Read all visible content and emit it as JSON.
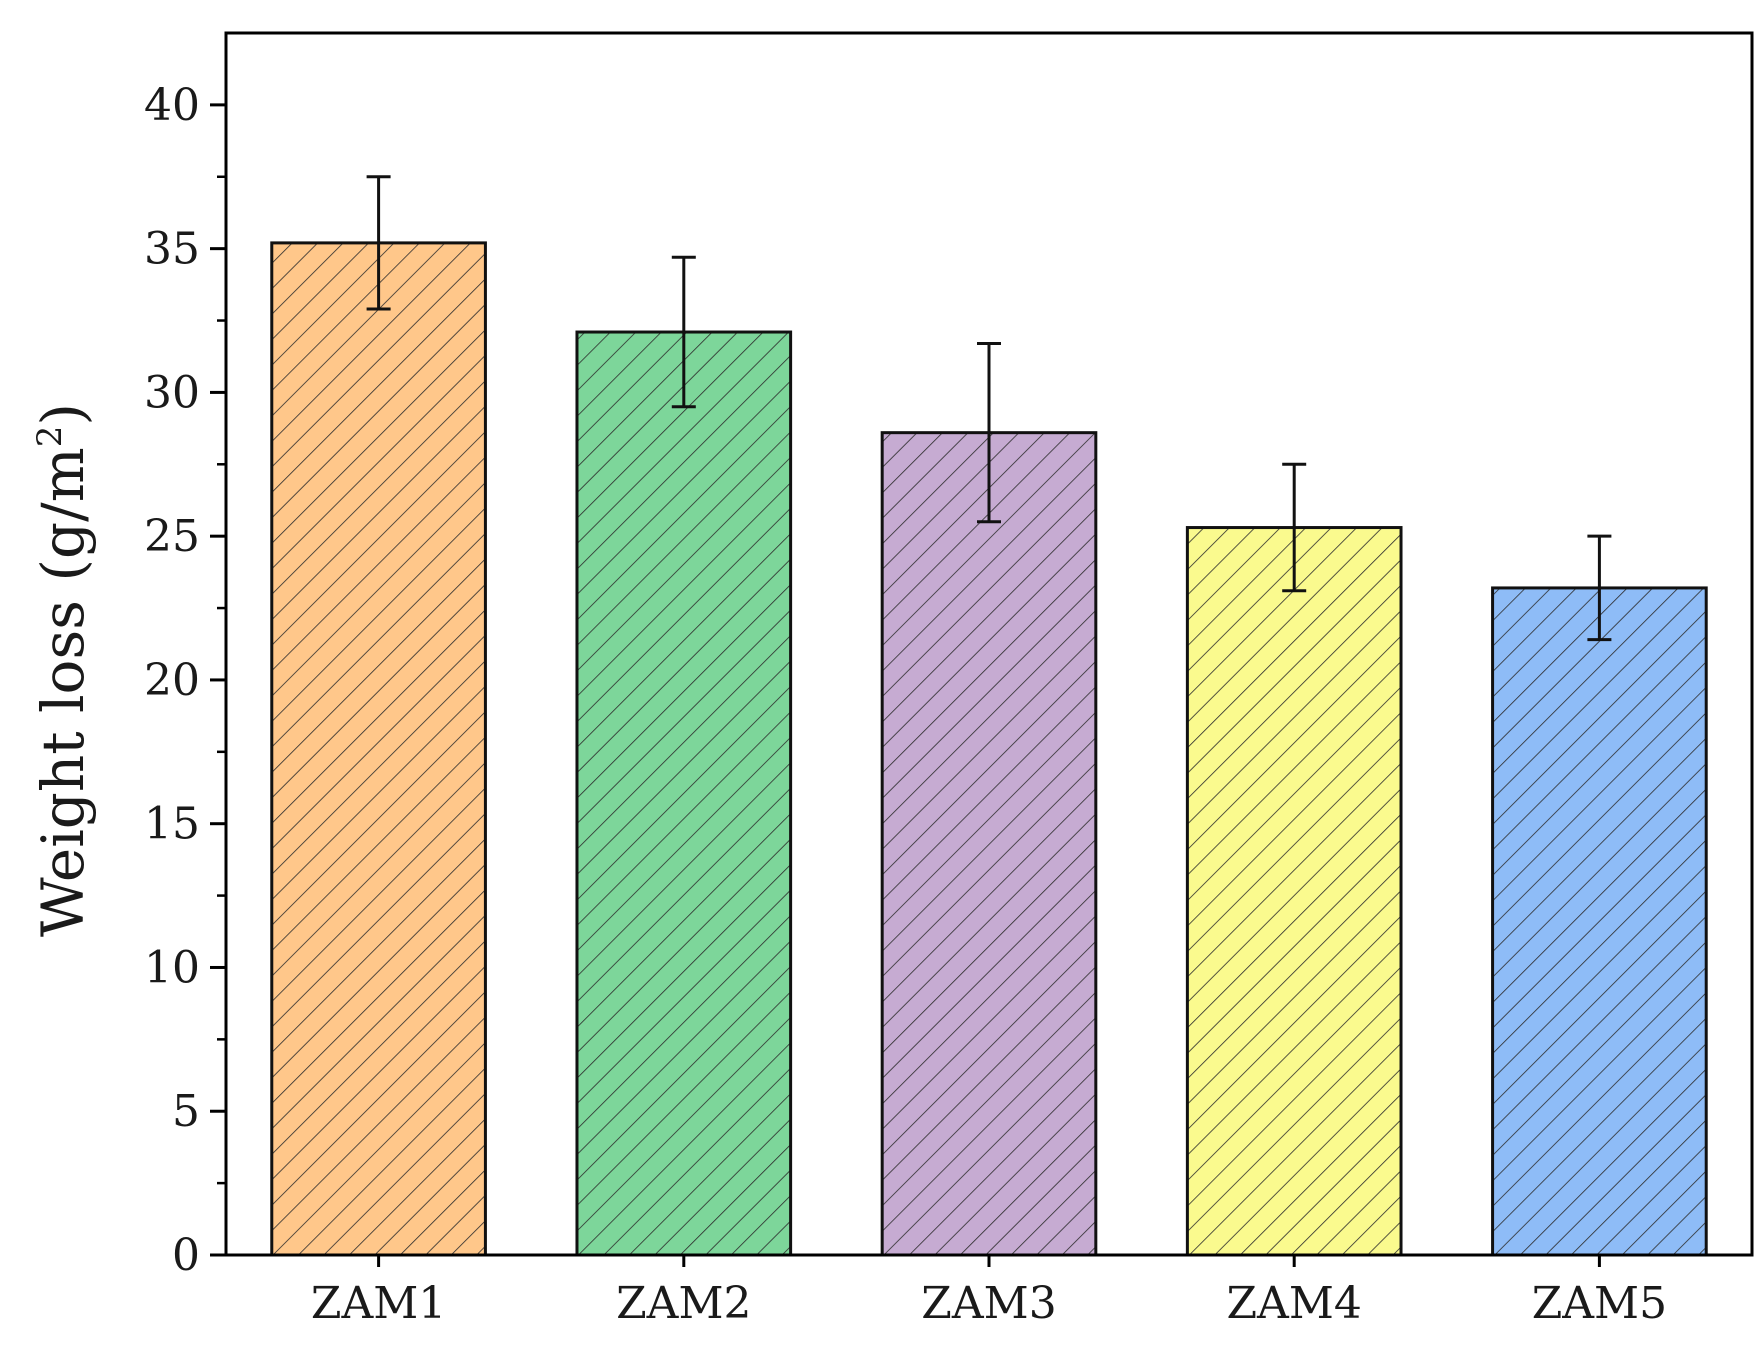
{
  "chart_data": {
    "type": "bar",
    "categories": [
      "ZAM1",
      "ZAM2",
      "ZAM3",
      "ZAM4",
      "ZAM5"
    ],
    "values": [
      35.2,
      32.1,
      28.6,
      25.3,
      23.2
    ],
    "error_low": [
      32.9,
      29.5,
      25.5,
      23.1,
      21.4
    ],
    "error_high": [
      37.5,
      34.7,
      31.7,
      27.5,
      25.0
    ],
    "colors": [
      "#FFC78A",
      "#7DD69A",
      "#C6ABD2",
      "#FAFA8E",
      "#8EBCF7"
    ],
    "hatch": "diagonal",
    "ylabel": {
      "main": "Weight loss (g/m",
      "sup": "2",
      "close": ")"
    },
    "ylim": [
      0,
      42.5
    ],
    "yticks": [
      0,
      5,
      10,
      15,
      20,
      25,
      30,
      35,
      40
    ],
    "yticks_minor": [
      2.5,
      7.5,
      12.5,
      17.5,
      22.5,
      27.5,
      32.5,
      37.5
    ],
    "grid": false
  }
}
